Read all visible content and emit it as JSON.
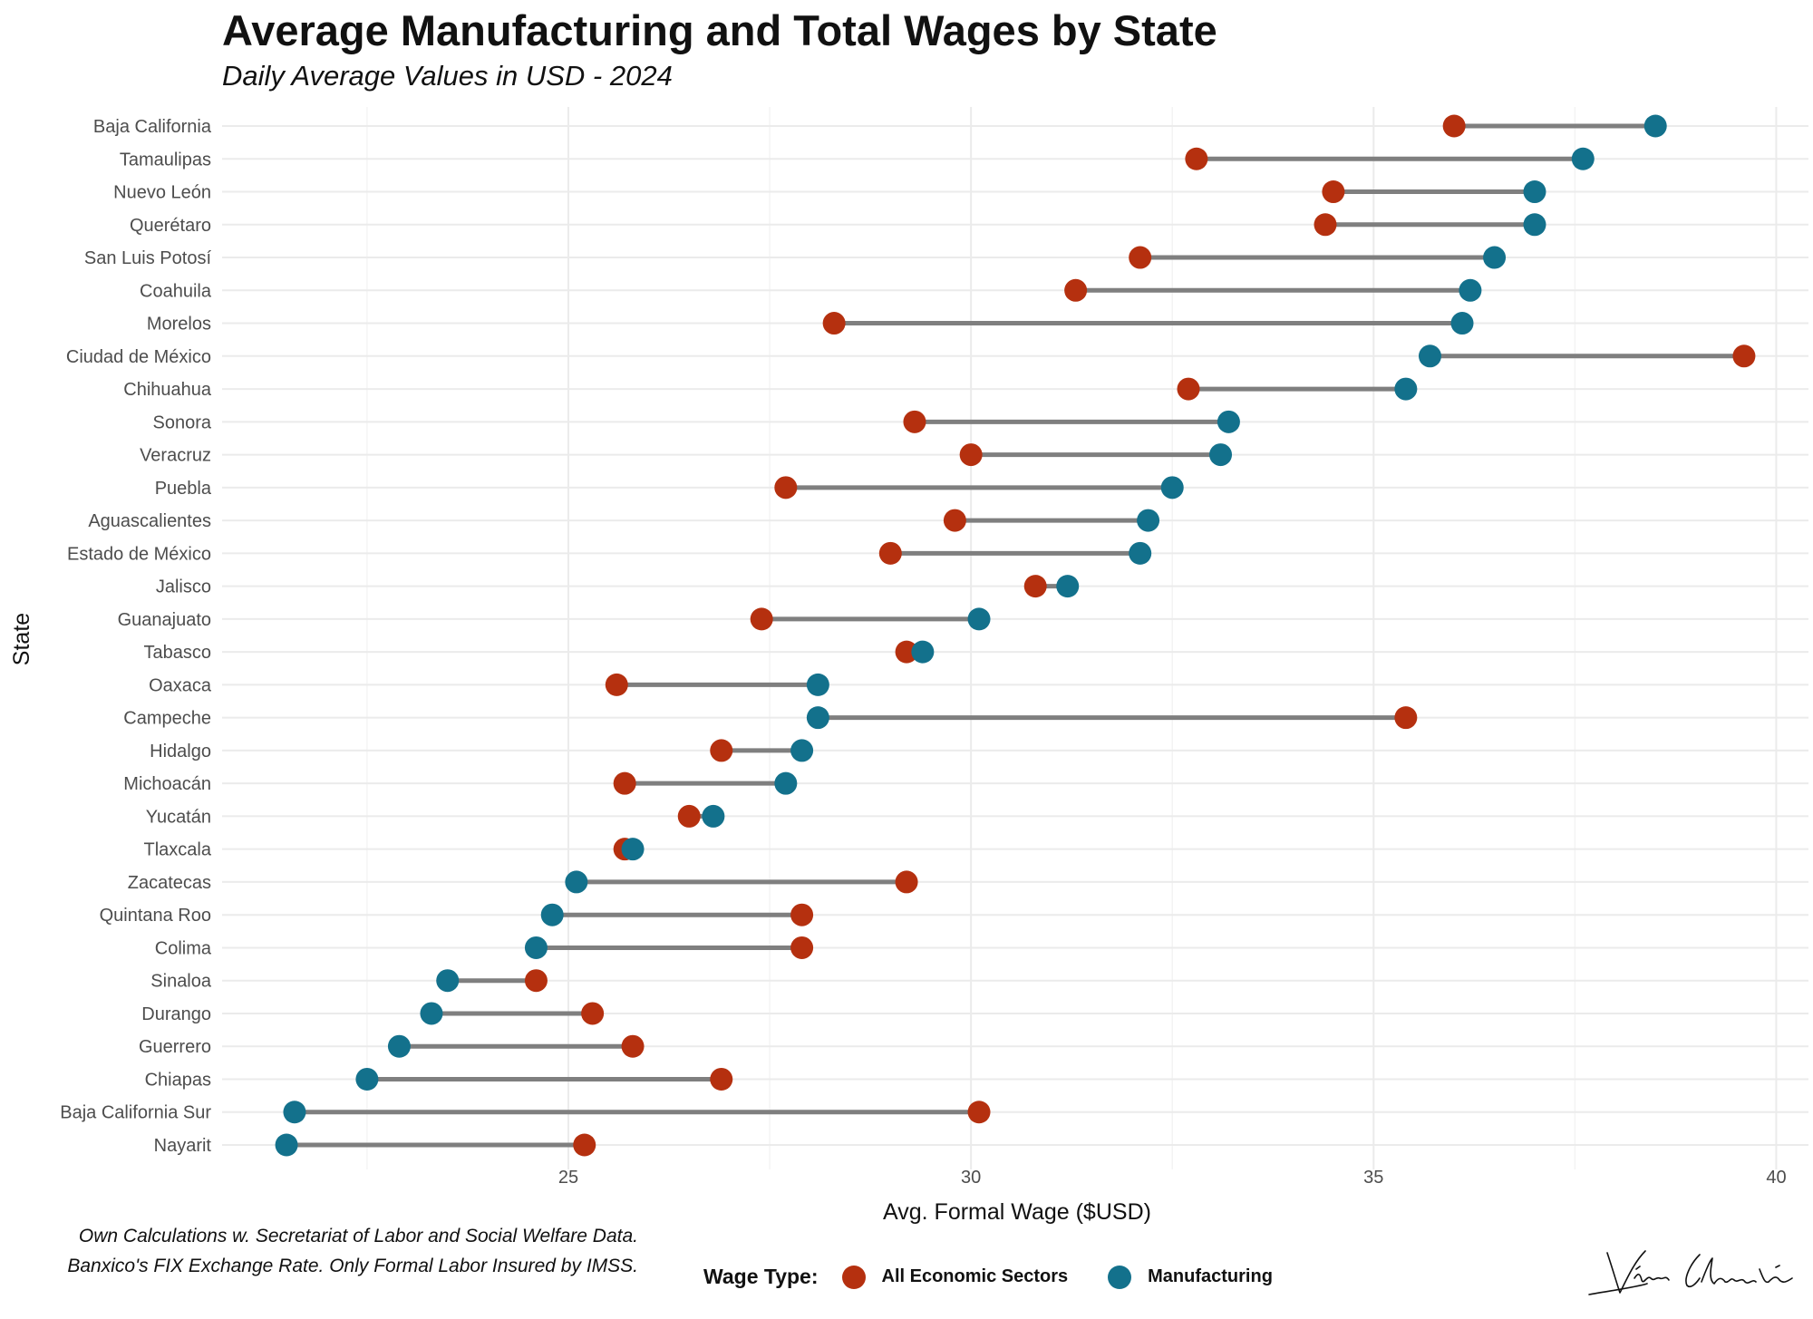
{
  "title": "Average Manufacturing and Total Wages by State",
  "subtitle": "Daily Average Values in USD - 2024",
  "caption": [
    "Own Calculations w. Secretariat of Labor and Social Welfare Data.",
    "Banxico's FIX Exchange Rate. Only Formal Labor Insured by IMSS."
  ],
  "legend": {
    "title": "Wage Type:",
    "items": [
      {
        "label": "All Economic Sectors",
        "color": "#B5300F"
      },
      {
        "label": "Manufacturing",
        "color": "#13718C"
      }
    ]
  },
  "signature": "Víctor Sánchez",
  "chart_data": {
    "type": "dumbbell",
    "xlabel": "Avg. Formal Wage ($USD)",
    "ylabel": "State",
    "xlim": [
      20.7,
      40.4
    ],
    "xticks": [
      25,
      30,
      35,
      40
    ],
    "grid": true,
    "legend_position": "bottom",
    "series": [
      {
        "name": "All Economic Sectors",
        "color": "#B5300F"
      },
      {
        "name": "Manufacturing",
        "color": "#13718C"
      }
    ],
    "segment_color": "#7F7F7F",
    "states": [
      "Baja California",
      "Tamaulipas",
      "Nuevo León",
      "Querétaro",
      "San Luis Potosí",
      "Coahuila",
      "Morelos",
      "Ciudad de México",
      "Chihuahua",
      "Sonora",
      "Veracruz",
      "Puebla",
      "Aguascalientes",
      "Estado de México",
      "Jalisco",
      "Guanajuato",
      "Tabasco",
      "Oaxaca",
      "Campeche",
      "Hidalgo",
      "Michoacán",
      "Yucatán",
      "Tlaxcala",
      "Zacatecas",
      "Quintana Roo",
      "Colima",
      "Sinaloa",
      "Durango",
      "Guerrero",
      "Chiapas",
      "Baja California Sur",
      "Nayarit"
    ],
    "all_sectors": [
      36.0,
      32.8,
      34.5,
      34.4,
      32.1,
      31.3,
      28.3,
      39.6,
      32.7,
      29.3,
      30.0,
      27.7,
      29.8,
      29.0,
      30.8,
      27.4,
      29.2,
      25.6,
      35.4,
      26.9,
      25.7,
      26.5,
      25.7,
      29.2,
      27.9,
      27.9,
      24.6,
      25.3,
      25.8,
      26.9,
      30.1,
      25.2
    ],
    "manufacturing": [
      38.5,
      37.6,
      37.0,
      37.0,
      36.5,
      36.2,
      36.1,
      35.7,
      35.4,
      33.2,
      33.1,
      32.5,
      32.2,
      32.1,
      31.2,
      30.1,
      29.4,
      28.1,
      28.1,
      27.9,
      27.7,
      26.8,
      25.8,
      25.1,
      24.8,
      24.6,
      23.5,
      23.3,
      22.9,
      22.5,
      21.6,
      21.5
    ]
  }
}
